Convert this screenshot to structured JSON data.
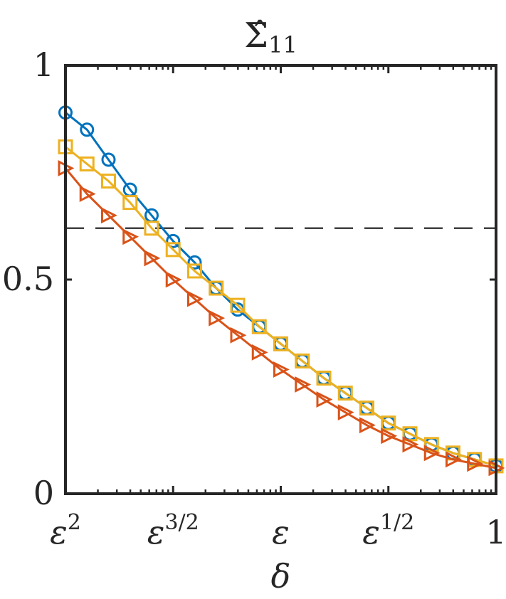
{
  "chart_data": {
    "type": "line",
    "title": "Σ̂",
    "title_subscript": "11",
    "xlabel": "δ",
    "ylabel": "",
    "xscale": "log",
    "x_tick_labels": [
      {
        "base": "ε",
        "exp": "2"
      },
      {
        "base": "ε",
        "exp": "3/2"
      },
      {
        "base": "ε",
        "exp": ""
      },
      {
        "base": "ε",
        "exp": "1/2"
      },
      {
        "base": "1",
        "exp": ""
      }
    ],
    "x_range_fraction": [
      0,
      1
    ],
    "y_tick_labels": [
      "0",
      "0.5",
      "1"
    ],
    "y_ticks": [
      0,
      0.5,
      1
    ],
    "ylim": [
      0,
      1
    ],
    "grid": false,
    "reference_line": {
      "y": 0.62,
      "style": "dashed",
      "color": "#404040"
    },
    "x": [
      0,
      0.05,
      0.1,
      0.15,
      0.2,
      0.25,
      0.3,
      0.35,
      0.4,
      0.45,
      0.5,
      0.55,
      0.6,
      0.65,
      0.7,
      0.75,
      0.8,
      0.85,
      0.9,
      0.95,
      1.0
    ],
    "series": [
      {
        "color": "#0072BD",
        "marker": "circle",
        "values": [
          0.89,
          0.85,
          0.78,
          0.71,
          0.65,
          0.59,
          0.54,
          0.48,
          0.43,
          0.39,
          0.35,
          0.31,
          0.27,
          0.235,
          0.2,
          0.165,
          0.14,
          0.115,
          0.095,
          0.08,
          0.065
        ]
      },
      {
        "color": "#EDB120",
        "marker": "square",
        "values": [
          0.81,
          0.77,
          0.73,
          0.68,
          0.62,
          0.57,
          0.52,
          0.48,
          0.44,
          0.39,
          0.35,
          0.31,
          0.27,
          0.235,
          0.2,
          0.165,
          0.14,
          0.115,
          0.095,
          0.08,
          0.065
        ]
      },
      {
        "color": "#D95319",
        "marker": "triangle-right",
        "values": [
          0.76,
          0.7,
          0.65,
          0.6,
          0.55,
          0.5,
          0.455,
          0.41,
          0.37,
          0.33,
          0.29,
          0.255,
          0.22,
          0.19,
          0.16,
          0.135,
          0.115,
          0.095,
          0.08,
          0.07,
          0.06
        ]
      }
    ]
  }
}
